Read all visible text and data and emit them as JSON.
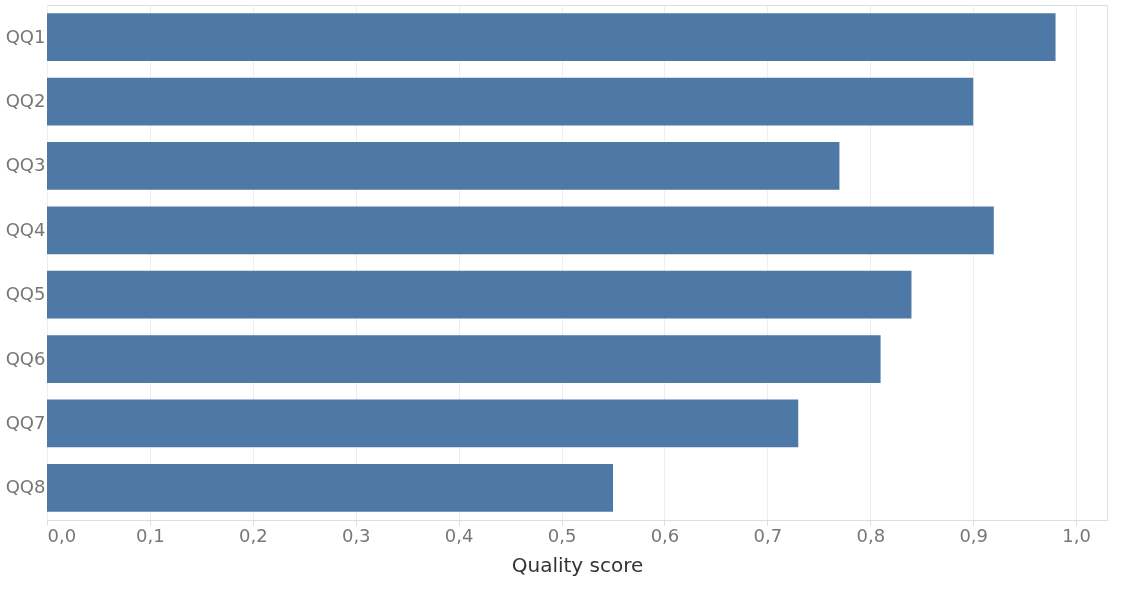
{
  "chart_data": {
    "type": "bar",
    "orientation": "horizontal",
    "xlabel": "Quality score",
    "categories": [
      "QQ1",
      "QQ2",
      "QQ3",
      "QQ4",
      "QQ5",
      "QQ6",
      "QQ7",
      "QQ8"
    ],
    "values": [
      0.98,
      0.9,
      0.77,
      0.92,
      0.84,
      0.81,
      0.73,
      0.55
    ],
    "color": "#4e79a7",
    "xlim": [
      0,
      1.03
    ],
    "xticks": [
      {
        "value": 0,
        "label": "0,0"
      },
      {
        "value": 0.1,
        "label": "0,1"
      },
      {
        "value": 0.2,
        "label": "0,2"
      },
      {
        "value": 0.3,
        "label": "0,3"
      },
      {
        "value": 0.4,
        "label": "0,4"
      },
      {
        "value": 0.5,
        "label": "0,5"
      },
      {
        "value": 0.6,
        "label": "0,6"
      },
      {
        "value": 0.7,
        "label": "0,7"
      },
      {
        "value": 0.8,
        "label": "0,8"
      },
      {
        "value": 0.9,
        "label": "0,9"
      },
      {
        "value": 1.0,
        "label": "1,0"
      }
    ],
    "grid": "x"
  }
}
